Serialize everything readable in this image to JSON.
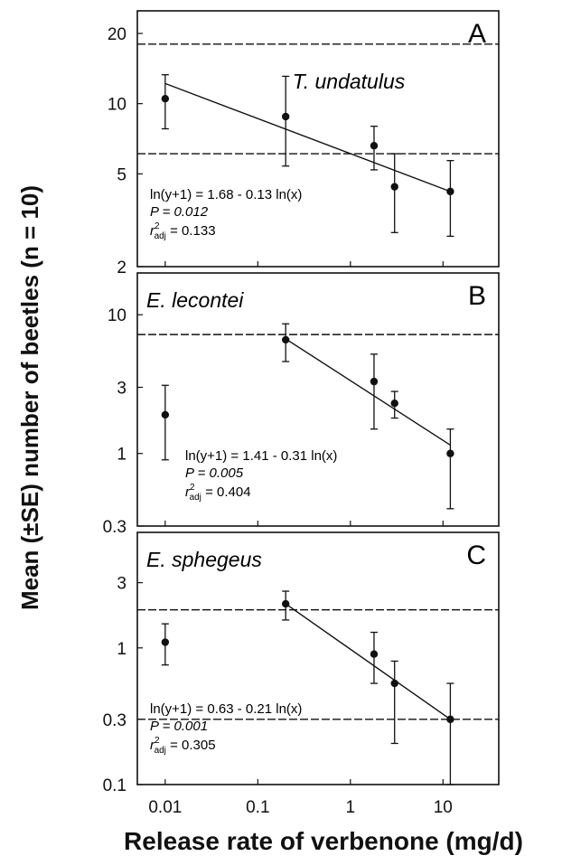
{
  "figure": {
    "ylabel": "Mean (±SE) number of beetles (n = 10)",
    "xlabel": "Release rate of verbenone (mg/d)",
    "x_ticks": [
      "0.01",
      "0.1",
      "1",
      "10"
    ]
  },
  "chart_data": [
    {
      "type": "scatter",
      "panel_letter": "A",
      "species": "T. undatulus",
      "x_scale": "log",
      "y_scale": "log",
      "xlim": [
        0.005,
        40
      ],
      "ylim": [
        2,
        25
      ],
      "y_ticks": [
        {
          "value": 2,
          "label": "2"
        },
        {
          "value": 5,
          "label": "5"
        },
        {
          "value": 10,
          "label": "10"
        },
        {
          "value": 20,
          "label": "20"
        }
      ],
      "points": [
        {
          "x": 0.01,
          "y": 10.5,
          "err_low": 7.8,
          "err_high": 13.3
        },
        {
          "x": 0.2,
          "y": 8.8,
          "err_low": 5.4,
          "err_high": 13.1
        },
        {
          "x": 1.8,
          "y": 6.6,
          "err_low": 5.2,
          "err_high": 8.0
        },
        {
          "x": 3,
          "y": 4.4,
          "err_low": 2.8,
          "err_high": 6.1
        },
        {
          "x": 12,
          "y": 4.2,
          "err_low": 2.7,
          "err_high": 5.7
        }
      ],
      "fit_line": {
        "x": [
          0.01,
          12
        ],
        "y": [
          12.2,
          4.2
        ]
      },
      "reference_lines": [
        18,
        6.1
      ],
      "equation": "ln(y+1) = 1.68 - 0.13 ln(x)",
      "p_label": "P = 0.012",
      "r2_label": "= 0.133"
    },
    {
      "type": "scatter",
      "panel_letter": "B",
      "species": "E. lecontei",
      "x_scale": "log",
      "y_scale": "log",
      "xlim": [
        0.005,
        40
      ],
      "ylim": [
        0.3,
        20
      ],
      "y_ticks": [
        {
          "value": 0.3,
          "label": "0.3"
        },
        {
          "value": 1,
          "label": "1"
        },
        {
          "value": 3,
          "label": "3"
        },
        {
          "value": 10,
          "label": "10"
        }
      ],
      "points": [
        {
          "x": 0.01,
          "y": 1.9,
          "err_low": 0.9,
          "err_high": 3.1
        },
        {
          "x": 0.2,
          "y": 6.6,
          "err_low": 4.6,
          "err_high": 8.6
        },
        {
          "x": 1.8,
          "y": 3.3,
          "err_low": 1.5,
          "err_high": 5.2
        },
        {
          "x": 3,
          "y": 2.3,
          "err_low": 1.8,
          "err_high": 2.8
        },
        {
          "x": 12,
          "y": 1.0,
          "err_low": 0.4,
          "err_high": 1.5
        }
      ],
      "fit_line": {
        "x": [
          0.2,
          12
        ],
        "y": [
          6.7,
          1.15
        ]
      },
      "reference_lines": [
        7.2
      ],
      "equation": "ln(y+1) = 1.41 - 0.31 ln(x)",
      "p_label": "P = 0.005",
      "r2_label": "= 0.404"
    },
    {
      "type": "scatter",
      "panel_letter": "C",
      "species": "E. sphegeus",
      "x_scale": "log",
      "y_scale": "log",
      "xlim": [
        0.005,
        40
      ],
      "ylim": [
        0.1,
        7
      ],
      "y_ticks": [
        {
          "value": 0.1,
          "label": "0.1"
        },
        {
          "value": 0.3,
          "label": "0.3"
        },
        {
          "value": 1,
          "label": "1"
        },
        {
          "value": 3,
          "label": "3"
        }
      ],
      "points": [
        {
          "x": 0.01,
          "y": 1.1,
          "err_low": 0.75,
          "err_high": 1.5
        },
        {
          "x": 0.2,
          "y": 2.1,
          "err_low": 1.6,
          "err_high": 2.6
        },
        {
          "x": 1.8,
          "y": 0.9,
          "err_low": 0.55,
          "err_high": 1.3
        },
        {
          "x": 3,
          "y": 0.55,
          "err_low": 0.2,
          "err_high": 0.8
        },
        {
          "x": 12,
          "y": 0.3,
          "err_low": 0.1,
          "err_high": 0.55
        }
      ],
      "fit_line": {
        "x": [
          0.2,
          12
        ],
        "y": [
          2.1,
          0.3
        ]
      },
      "reference_lines": [
        1.9,
        0.3
      ],
      "equation": "ln(y+1) = 0.63 - 0.21 ln(x)",
      "p_label": "P = 0.001",
      "r2_label": "= 0.305"
    }
  ]
}
